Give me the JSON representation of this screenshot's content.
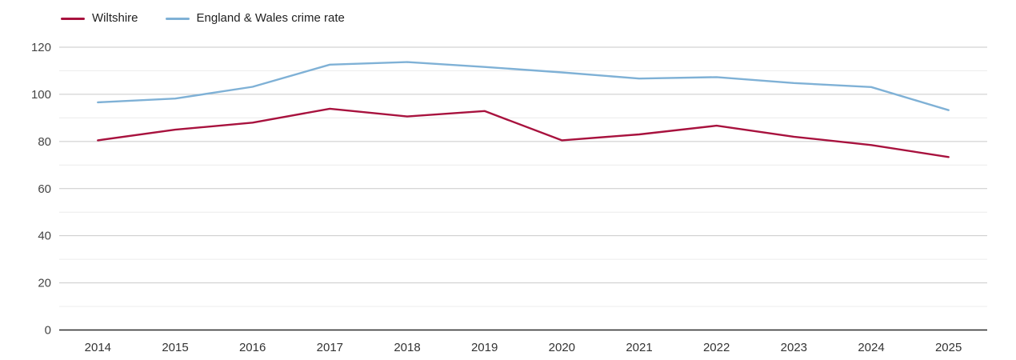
{
  "legend": {
    "items": [
      {
        "label": "Wiltshire"
      },
      {
        "label": "England & Wales crime rate"
      }
    ]
  },
  "colors": {
    "wiltshire_line": "#a8123e",
    "england_wales_line": "#7fb1d6",
    "axis_line": "#2b2b2b",
    "grid_major": "#c9c9c9",
    "grid_minor": "#ececec",
    "y_tick_text": "#444444",
    "x_tick_text": "#333333",
    "background": "#ffffff"
  },
  "chart_data": {
    "type": "line",
    "categories": [
      "2014",
      "2015",
      "2016",
      "2017",
      "2018",
      "2019",
      "2020",
      "2021",
      "2022",
      "2023",
      "2024",
      "2025"
    ],
    "series": [
      {
        "name": "Wiltshire",
        "color": "#a8123e",
        "values": [
          80.5,
          85.0,
          88.0,
          93.9,
          90.6,
          92.9,
          80.5,
          83.0,
          86.7,
          82.0,
          78.5,
          73.4
        ]
      },
      {
        "name": "England & Wales crime rate",
        "color": "#7fb1d6",
        "values": [
          96.6,
          98.2,
          103.2,
          112.6,
          113.7,
          111.6,
          109.3,
          106.7,
          107.3,
          104.8,
          103.1,
          93.3
        ]
      }
    ],
    "title": "",
    "xlabel": "",
    "ylabel": "",
    "ylim": [
      0,
      120
    ],
    "grid": true,
    "grid_step": 10,
    "label_step": 20,
    "legend_position": "top-left"
  }
}
